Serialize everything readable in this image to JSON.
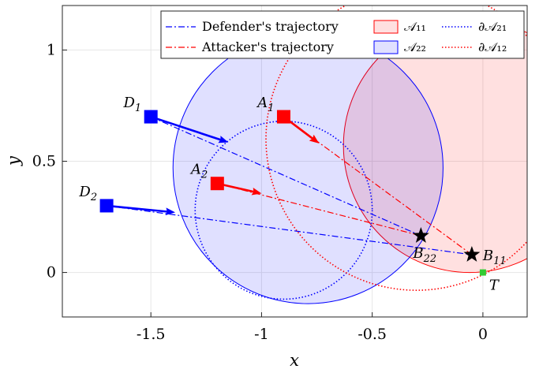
{
  "chart_data": {
    "type": "scatter",
    "xlabel": "x",
    "ylabel": "y",
    "xlim": [
      -1.9,
      0.2
    ],
    "ylim": [
      -0.2,
      1.2
    ],
    "xticks": [
      -1.5,
      -1,
      -0.5,
      0
    ],
    "xtick_labels": [
      "-1.5",
      "-1",
      "-0.5",
      "0"
    ],
    "yticks": [
      0,
      0.5,
      1
    ],
    "ytick_labels": [
      "0",
      "0.5",
      "1"
    ],
    "grid": true,
    "legend_position": "top-right",
    "legend": [
      {
        "label": "Defender's trajectory",
        "style": "dash-dot",
        "color": "#0000ff"
      },
      {
        "label": "Attacker's trajectory",
        "style": "dash-dot",
        "color": "#ff0000"
      },
      {
        "label": "𝒜₁₁",
        "style": "patch",
        "color": "#ff0000"
      },
      {
        "label": "𝒜₂₂",
        "style": "patch",
        "color": "#0000ff"
      },
      {
        "label": "∂𝒜₂₁",
        "style": "dotted",
        "color": "#0000ff"
      },
      {
        "label": "∂𝒜₁₂",
        "style": "dotted",
        "color": "#ff0000"
      }
    ],
    "regions": [
      {
        "name": "𝒜₁₁",
        "type": "filled-circle",
        "center": [
          -0.06,
          0.57
        ],
        "radius": 0.57,
        "color": "#ff0000"
      },
      {
        "name": "𝒜₂₂",
        "type": "filled-circle",
        "center": [
          -0.79,
          0.47
        ],
        "radius": 0.61,
        "color": "#0000ff"
      },
      {
        "name": "∂𝒜₂₁",
        "type": "dotted-circle",
        "center": [
          -0.9,
          0.28
        ],
        "radius": 0.4,
        "color": "#0000ff"
      },
      {
        "name": "∂𝒜₁₂",
        "type": "dotted-circle",
        "center": [
          -0.3,
          0.6
        ],
        "radius": 0.68,
        "color": "#ff0000"
      }
    ],
    "points": [
      {
        "label": "D",
        "sub": "1",
        "x": -1.5,
        "y": 0.7,
        "marker": "square",
        "color": "#0000ff",
        "label_side": "upper-left"
      },
      {
        "label": "D",
        "sub": "2",
        "x": -1.7,
        "y": 0.3,
        "marker": "square",
        "color": "#0000ff",
        "label_side": "upper-left"
      },
      {
        "label": "A",
        "sub": "1",
        "x": -0.9,
        "y": 0.7,
        "marker": "square",
        "color": "#ff0000",
        "label_side": "upper-left"
      },
      {
        "label": "A",
        "sub": "2",
        "x": -1.2,
        "y": 0.4,
        "marker": "square",
        "color": "#ff0000",
        "label_side": "upper-left"
      },
      {
        "label": "B",
        "sub": "22",
        "x": -0.28,
        "y": 0.165,
        "marker": "star",
        "color": "#000000",
        "label_side": "below"
      },
      {
        "label": "B",
        "sub": "11",
        "x": -0.05,
        "y": 0.08,
        "marker": "star",
        "color": "#000000",
        "label_side": "right"
      },
      {
        "label": "T",
        "sub": "",
        "x": 0.0,
        "y": 0.0,
        "marker": "small-square",
        "color": "#33cc33",
        "label_side": "lower-right"
      }
    ],
    "trajectories": [
      {
        "from": "D₁",
        "to": "B₂₂",
        "color": "#0000ff",
        "style": "dash-dot",
        "start": [
          -1.5,
          0.7
        ],
        "end": [
          -0.28,
          0.165
        ]
      },
      {
        "from": "D₂",
        "to": "B₁₁",
        "color": "#0000ff",
        "style": "dash-dot",
        "start": [
          -1.7,
          0.3
        ],
        "end": [
          -0.05,
          0.08
        ]
      },
      {
        "from": "A₁",
        "to": "B₁₁",
        "color": "#ff0000",
        "style": "dash-dot",
        "start": [
          -0.9,
          0.7
        ],
        "end": [
          -0.05,
          0.08
        ]
      },
      {
        "from": "A₂",
        "to": "B₂₂",
        "color": "#ff0000",
        "style": "dash-dot",
        "start": [
          -1.2,
          0.4
        ],
        "end": [
          -0.28,
          0.165
        ]
      }
    ],
    "velocity_arrows": [
      {
        "from": "D₁",
        "color": "#0000ff",
        "start": [
          -1.5,
          0.7
        ],
        "end": [
          -1.15,
          0.585
        ]
      },
      {
        "from": "D₂",
        "color": "#0000ff",
        "start": [
          -1.7,
          0.3
        ],
        "end": [
          -1.39,
          0.27
        ]
      },
      {
        "from": "A₁",
        "color": "#ff0000",
        "start": [
          -0.9,
          0.7
        ],
        "end": [
          -0.74,
          0.58
        ]
      },
      {
        "from": "A₂",
        "color": "#ff0000",
        "start": [
          -1.2,
          0.4
        ],
        "end": [
          -1.0,
          0.355
        ]
      }
    ]
  }
}
